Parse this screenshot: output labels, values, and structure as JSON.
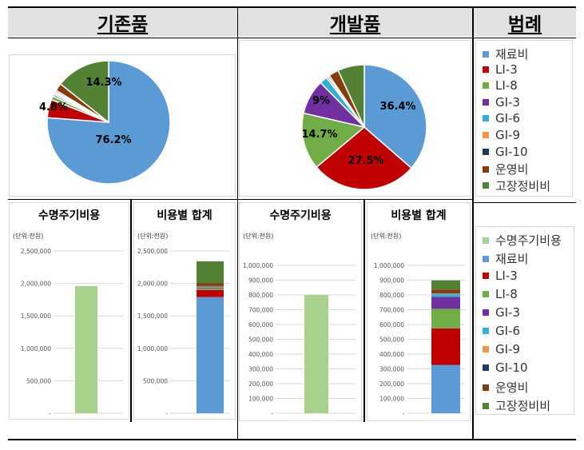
{
  "headers": {
    "existing": "기존품",
    "developed": "개발품",
    "legend": "범례"
  },
  "colors": {
    "material": "#5b9bd5",
    "LI-3": "#c00000",
    "LI-8": "#70ad47",
    "GI-3": "#7030a0",
    "GI-6": "#31b0d5",
    "GI-9": "#f79646",
    "GI-10": "#1f3864",
    "operation": "#843c0c",
    "repair": "#548235",
    "lifecycle": "#a9d18e"
  },
  "chart_data": [
    {
      "type": "pie",
      "id": "existing-pie",
      "slices": [
        {
          "name": "재료비",
          "value": 76.2,
          "label": "76.2%"
        },
        {
          "name": "LI-3",
          "value": 4.8,
          "label": "4.8%"
        },
        {
          "name": "LI-8",
          "value": 1.0,
          "label": ""
        },
        {
          "name": "GI-3",
          "value": 0.5,
          "label": ""
        },
        {
          "name": "GI-6",
          "value": 0.4,
          "label": ""
        },
        {
          "name": "GI-9",
          "value": 0.4,
          "label": ""
        },
        {
          "name": "GI-10",
          "value": 0.4,
          "label": ""
        },
        {
          "name": "운영비",
          "value": 2.0,
          "label": ""
        },
        {
          "name": "고장정비비",
          "value": 14.3,
          "label": "14.3%"
        }
      ]
    },
    {
      "type": "pie",
      "id": "developed-pie",
      "slices": [
        {
          "name": "재료비",
          "value": 36.4,
          "label": "36.4%"
        },
        {
          "name": "LI-3",
          "value": 27.5,
          "label": "27.5%"
        },
        {
          "name": "LI-8",
          "value": 14.7,
          "label": "14.7%"
        },
        {
          "name": "GI-3",
          "value": 9.0,
          "label": "9%"
        },
        {
          "name": "GI-6",
          "value": 2.0,
          "label": ""
        },
        {
          "name": "GI-9",
          "value": 0.5,
          "label": ""
        },
        {
          "name": "GI-10",
          "value": 0.4,
          "label": ""
        },
        {
          "name": "운영비",
          "value": 2.6,
          "label": ""
        },
        {
          "name": "고장정비비",
          "value": 6.9,
          "label": ""
        }
      ]
    },
    {
      "type": "bar",
      "id": "existing-lifecycle",
      "title": "수명주기비용",
      "unit": "(단위:천원)",
      "yticks": [
        "-",
        "500,000",
        "1,000,000",
        "1,500,000",
        "2,000,000",
        "2,500,000"
      ],
      "ylim": [
        0,
        2500000
      ],
      "series": [
        {
          "name": "수명주기비용",
          "values": [
            1960000
          ]
        }
      ]
    },
    {
      "type": "bar",
      "id": "existing-total",
      "title": "비용별 합계",
      "unit": "(단위:천원)",
      "yticks": [
        "-",
        "500,000",
        "1,000,000",
        "1,500,000",
        "2,000,000",
        "2,500,000"
      ],
      "ylim": [
        0,
        2500000
      ],
      "series": [
        {
          "name": "재료비",
          "values": [
            1790000
          ]
        },
        {
          "name": "LI-3",
          "values": [
            110000
          ]
        },
        {
          "name": "LI-8",
          "values": [
            25000
          ]
        },
        {
          "name": "GI-3",
          "values": [
            12000
          ]
        },
        {
          "name": "GI-6",
          "values": [
            8000
          ]
        },
        {
          "name": "GI-9",
          "values": [
            8000
          ]
        },
        {
          "name": "GI-10",
          "values": [
            8000
          ]
        },
        {
          "name": "운영비",
          "values": [
            45000
          ]
        },
        {
          "name": "고장정비비",
          "values": [
            334000
          ]
        }
      ]
    },
    {
      "type": "bar",
      "id": "developed-lifecycle",
      "title": "수명주기비용",
      "unit": "(단위:천원)",
      "yticks": [
        "-",
        "100,000",
        "200,000",
        "300,000",
        "400,000",
        "500,000",
        "600,000",
        "700,000",
        "800,000",
        "900,000",
        "1,000,000"
      ],
      "ylim": [
        0,
        1000000
      ],
      "series": [
        {
          "name": "수명주기비용",
          "values": [
            800000
          ]
        }
      ]
    },
    {
      "type": "bar",
      "id": "developed-total",
      "title": "비용별 합계",
      "unit": "(단위:천원)",
      "yticks": [
        "-",
        "100,000",
        "200,000",
        "300,000",
        "400,000",
        "500,000",
        "600,000",
        "700,000",
        "800,000",
        "900,000",
        "1,000,000"
      ],
      "ylim": [
        0,
        1000000
      ],
      "series": [
        {
          "name": "재료비",
          "values": [
            327000
          ]
        },
        {
          "name": "LI-3",
          "values": [
            247000
          ]
        },
        {
          "name": "LI-8",
          "values": [
            132000
          ]
        },
        {
          "name": "GI-3",
          "values": [
            81000
          ]
        },
        {
          "name": "GI-6",
          "values": [
            18000
          ]
        },
        {
          "name": "GI-9",
          "values": [
            4500
          ]
        },
        {
          "name": "GI-10",
          "values": [
            3500
          ]
        },
        {
          "name": "운영비",
          "values": [
            23000
          ]
        },
        {
          "name": "고장정비비",
          "values": [
            62000
          ]
        }
      ]
    }
  ],
  "legend_top": [
    "재료비",
    "LI-3",
    "LI-8",
    "GI-3",
    "GI-6",
    "GI-9",
    "GI-10",
    "운영비",
    "고장정비비"
  ],
  "legend_bottom": [
    "수명주기비용",
    "재료비",
    "LI-3",
    "LI-8",
    "GI-3",
    "GI-6",
    "GI-9",
    "GI-10",
    "운영비",
    "고장정비비"
  ]
}
